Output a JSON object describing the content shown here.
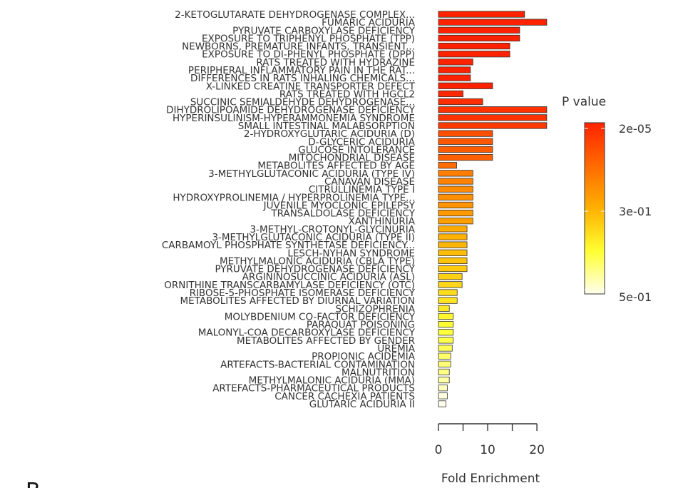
{
  "chart_data": {
    "type": "bar",
    "orientation": "horizontal",
    "title": "",
    "xlabel": "Fold Enrichment",
    "ylabel": "",
    "xlim": [
      0,
      22
    ],
    "xticks": [
      0,
      5,
      10,
      15,
      20
    ],
    "xtick_labels": [
      "0",
      "10",
      "20"
    ],
    "grid": false,
    "legend": {
      "title": "P value",
      "placement": "right",
      "type": "colorbar",
      "labels": [
        "2e-05",
        "3e-01",
        "5e-01"
      ],
      "colors": [
        "#ff2200",
        "#ff6a00",
        "#ffb000",
        "#ffff33",
        "#ffffee"
      ]
    },
    "categories": [
      "2-KETOGLUTARATE DEHYDROGENASE COMPLEX...",
      "FUMARIC ACIDURIA",
      "PYRUVATE CARBOXYLASE DEFICIENCY",
      "EXPOSURE TO TRIPHENYL PHOSPHATE (TPP)",
      "NEWBORNS, PREMATURE INFANTS, TRANSIENT...",
      "EXPOSURE TO DI-PHENYL PHOSPHATE (DPP)",
      "RATS TREATED WITH HYDRAZINE",
      "PERIPHERAL INFLAMMATORY PAIN IN THE RAT...",
      "DIFFERENCES IN RATS INHALING CHEMICALS...",
      "X-LINKED CREATINE TRANSPORTER DEFECT",
      "RATS TREATED WITH HGCL2",
      "SUCCINIC SEMIALDEHYDE DEHYDROGENASE...",
      "DIHYDROLIPOAMIDE DEHYDROGENASE DEFICIENCY",
      "HYPERINSULINISM-HYPERAMMONEMIA SYNDROME",
      "SMALL INTESTINAL MALABSORPTION",
      "2-HYDROXYGLUTARIC ACIDURIA (D)",
      "D-GLYCERIC ACIDURIA",
      "GLUCOSE INTOLERANCE",
      "MITOCHONDRIAL DISEASE",
      "METABOLITES AFFECTED BY AGE",
      "3-METHYLGLUTACONIC ACIDURIA (TYPE IV)",
      "CANAVAN DISEASE",
      "CITRULLINEMIA TYPE I",
      "HYDROXYPROLINEMIA / HYPERPROLINEMIA TYPE...",
      "JUVENILE MYOCLONIC EPILEPSY",
      "TRANSALDOLASE DEFICIENCY",
      "XANTHINURIA",
      "3-METHYL-CROTONYL-GLYCINURIA",
      "3-METHYLGLUTACONIC ACIDURIA (TYPE II)",
      "CARBAMOYL PHOSPHATE SYNTHETASE DEFICIENCY...",
      "LESCH-NYHAN SYNDROME",
      "METHYLMALONIC ACIDURIA (CBLA TYPE)",
      "PYRUVATE DEHYDROGENASE DEFICIENCY",
      "ARGININOSUCCINIC ACIDURIA (ASL)",
      "ORNITHINE TRANSCARBAMYLASE DEFICIENCY (OTC)",
      "RIBOSE-5-PHOSPHATE ISOMERASE DEFICIENCY",
      "METABOLITES AFFECTED BY DIURNAL VARIATION",
      "SCHIZOPHRENIA",
      "MOLYBDENIUM CO-FACTOR DEFICIENCY",
      "PARAQUAT POISONING",
      "MALONYL-COA DECARBOXYLASE DEFICIENCY",
      "METABOLITES AFFECTED BY GENDER",
      "UREMIA",
      "PROPIONIC ACIDEMIA",
      "ARTEFACTS-BACTERIAL CONTAMINATION",
      "MALNUTRITION",
      "METHYLMALONIC ACIDURIA (MMA)",
      "ARTEFACTS-PHARMACEUTICAL PRODUCTS",
      "CANCER CACHEXIA PATIENTS",
      "GLUTARIC ACIDURIA II"
    ],
    "values": [
      17.5,
      22,
      16.5,
      16.5,
      14.5,
      14.5,
      7,
      6.5,
      6.5,
      11,
      5,
      9,
      22,
      22,
      22,
      11,
      11,
      11,
      11,
      3.7,
      7,
      7,
      7,
      7,
      7,
      7,
      7,
      5.8,
      5.8,
      5.8,
      5.8,
      5.8,
      5.8,
      4.8,
      4.8,
      3.8,
      3.8,
      2.2,
      3,
      3,
      3,
      3,
      2.8,
      2.5,
      2.5,
      2.2,
      2.2,
      1.8,
      1.8,
      1.5
    ],
    "p_values": [
      2e-05,
      2e-05,
      2e-05,
      2e-05,
      2e-05,
      2e-05,
      2e-05,
      2e-05,
      2e-05,
      2e-05,
      0.01,
      0.02,
      0.03,
      0.03,
      0.04,
      0.08,
      0.09,
      0.1,
      0.11,
      0.13,
      0.16,
      0.17,
      0.18,
      0.19,
      0.2,
      0.21,
      0.22,
      0.24,
      0.25,
      0.26,
      0.27,
      0.28,
      0.29,
      0.3,
      0.31,
      0.32,
      0.33,
      0.34,
      0.36,
      0.37,
      0.38,
      0.39,
      0.4,
      0.41,
      0.42,
      0.43,
      0.45,
      0.47,
      0.49,
      0.5
    ],
    "pvalue_range": [
      2e-05,
      0.5
    ]
  },
  "panel_label": "B"
}
